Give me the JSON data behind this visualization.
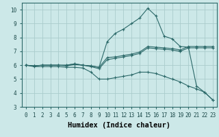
{
  "xlabel": "Humidex (Indice chaleur)",
  "background_color": "#cce8e8",
  "grid_color": "#aacccc",
  "line_color": "#2a6868",
  "xlim": [
    -0.5,
    23.5
  ],
  "ylim": [
    3,
    10.5
  ],
  "x_ticks": [
    0,
    1,
    2,
    3,
    4,
    5,
    6,
    7,
    8,
    9,
    10,
    11,
    12,
    13,
    14,
    15,
    16,
    17,
    18,
    19,
    20,
    21,
    22,
    23
  ],
  "y_ticks": [
    3,
    4,
    5,
    6,
    7,
    8,
    9,
    10
  ],
  "series": [
    {
      "x": [
        0,
        1,
        2,
        3,
        4,
        5,
        6,
        7,
        8,
        9,
        10,
        11,
        12,
        13,
        14,
        15,
        16,
        17,
        18,
        19,
        20,
        21,
        22,
        23
      ],
      "y": [
        6.0,
        5.9,
        5.9,
        5.9,
        5.9,
        5.85,
        5.85,
        5.8,
        5.5,
        5.0,
        5.0,
        5.1,
        5.2,
        5.3,
        5.5,
        5.5,
        5.4,
        5.2,
        5.0,
        4.8,
        4.5,
        4.3,
        4.05,
        3.5
      ]
    },
    {
      "x": [
        0,
        1,
        2,
        3,
        4,
        5,
        6,
        7,
        8,
        9,
        10,
        11,
        12,
        13,
        14,
        15,
        16,
        17,
        18,
        19,
        20,
        21,
        22,
        23
      ],
      "y": [
        6.0,
        5.95,
        6.0,
        6.0,
        6.0,
        5.95,
        6.05,
        6.0,
        5.9,
        5.75,
        6.4,
        6.5,
        6.6,
        6.7,
        6.85,
        7.25,
        7.2,
        7.15,
        7.1,
        7.0,
        7.25,
        7.25,
        7.25,
        7.25
      ]
    },
    {
      "x": [
        0,
        1,
        2,
        3,
        4,
        5,
        6,
        7,
        8,
        9,
        10,
        11,
        12,
        13,
        14,
        15,
        16,
        17,
        18,
        19,
        20,
        21,
        22,
        23
      ],
      "y": [
        6.0,
        5.95,
        6.0,
        6.0,
        6.0,
        6.0,
        6.1,
        6.0,
        5.95,
        5.85,
        6.55,
        6.6,
        6.7,
        6.8,
        6.95,
        7.35,
        7.3,
        7.25,
        7.2,
        7.1,
        7.35,
        7.35,
        7.35,
        7.35
      ]
    },
    {
      "x": [
        0,
        1,
        2,
        3,
        4,
        5,
        6,
        7,
        8,
        9,
        10,
        11,
        12,
        13,
        14,
        15,
        16,
        17,
        18,
        19,
        20,
        21,
        22,
        23
      ],
      "y": [
        6.0,
        5.95,
        6.0,
        6.0,
        6.0,
        6.0,
        6.1,
        6.0,
        5.95,
        5.85,
        7.7,
        8.3,
        8.6,
        9.0,
        9.4,
        10.1,
        9.55,
        8.1,
        7.9,
        7.35,
        7.3,
        4.5,
        4.05,
        3.5
      ]
    }
  ],
  "font_family": "monospace",
  "tick_fontsize": 5.5,
  "label_fontsize": 7.5
}
